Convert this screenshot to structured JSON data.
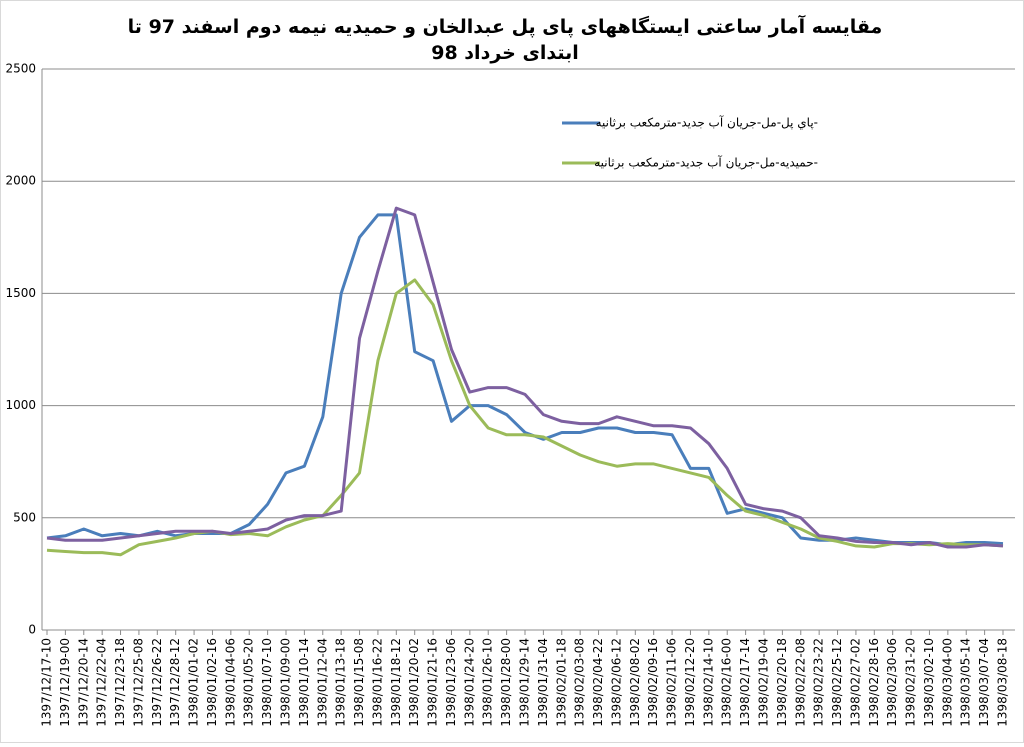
{
  "chart_data": {
    "type": "line",
    "title": "مقایسه آمار ساعتی ایستگاههای پای پل عبدالخان و حمیدیه نیمه دوم اسفند 97 تا ابتدای خرداد 98",
    "categories": [
      "1397/12/17-10",
      "1397/12/19-00",
      "1397/12/20-14",
      "1397/12/22-04",
      "1397/12/23-18",
      "1397/12/25-08",
      "1397/12/26-22",
      "1397/12/28-12",
      "1398/01/01-02",
      "1398/01/02-16",
      "1398/01/04-06",
      "1398/01/05-20",
      "1398/01/07-10",
      "1398/01/09-00",
      "1398/01/10-14",
      "1398/01/12-04",
      "1398/01/13-18",
      "1398/01/15-08",
      "1398/01/16-22",
      "1398/01/18-12",
      "1398/01/20-02",
      "1398/01/21-16",
      "1398/01/23-06",
      "1398/01/24-20",
      "1398/01/26-10",
      "1398/01/28-00",
      "1398/01/29-14",
      "1398/01/31-04",
      "1398/02/01-18",
      "1398/02/03-08",
      "1398/02/04-22",
      "1398/02/06-12",
      "1398/02/08-02",
      "1398/02/09-16",
      "1398/02/11-06",
      "1398/02/12-20",
      "1398/02/14-10",
      "1398/02/16-00",
      "1398/02/17-14",
      "1398/02/19-04",
      "1398/02/20-18",
      "1398/02/22-08",
      "1398/02/23-22",
      "1398/02/25-12",
      "1398/02/27-02",
      "1398/02/28-16",
      "1398/02/30-06",
      "1398/02/31-20",
      "1398/03/02-10",
      "1398/03/04-00",
      "1398/03/05-14",
      "1398/03/07-04",
      "1398/03/08-18"
    ],
    "series": [
      {
        "name": "پاي پل-مل-جريان آب جديد-مترمكعب برثانيه-",
        "color": "#4a7ebb",
        "values": [
          410,
          420,
          450,
          420,
          430,
          420,
          440,
          420,
          430,
          430,
          430,
          470,
          560,
          700,
          730,
          950,
          1500,
          1750,
          1850,
          1850,
          1240,
          1200,
          930,
          1000,
          1000,
          960,
          880,
          850,
          880,
          880,
          900,
          900,
          880,
          880,
          870,
          720,
          720,
          520,
          540,
          520,
          500,
          410,
          400,
          400,
          410,
          400,
          390,
          390,
          390,
          380,
          390,
          390,
          385
        ]
      },
      {
        "name": "حميديه-مل-جريان آب جديد-مترمكعب برثانيه-",
        "color": "#9bbb59",
        "values": [
          355,
          350,
          345,
          345,
          335,
          380,
          395,
          410,
          430,
          440,
          425,
          430,
          420,
          460,
          490,
          510,
          600,
          700,
          1200,
          1500,
          1560,
          1450,
          1200,
          1000,
          900,
          870,
          870,
          860,
          820,
          780,
          750,
          730,
          740,
          740,
          720,
          700,
          680,
          600,
          530,
          510,
          480,
          450,
          410,
          395,
          375,
          370,
          385,
          385,
          380,
          385,
          380,
          380,
          375
        ]
      },
      {
        "color": "#7d60a0",
        "values": [
          410,
          400,
          400,
          400,
          410,
          420,
          430,
          440,
          440,
          440,
          430,
          440,
          450,
          490,
          510,
          510,
          530,
          1300,
          1600,
          1880,
          1850,
          1550,
          1250,
          1060,
          1080,
          1080,
          1050,
          960,
          930,
          920,
          920,
          950,
          930,
          910,
          910,
          900,
          830,
          720,
          560,
          540,
          530,
          500,
          420,
          410,
          395,
          390,
          390,
          380,
          390,
          370,
          370,
          380,
          375
        ]
      }
    ],
    "ylim": [
      0,
      2500
    ],
    "yticks": [
      0,
      500,
      1000,
      1500,
      2000,
      2500
    ],
    "grid": true
  }
}
